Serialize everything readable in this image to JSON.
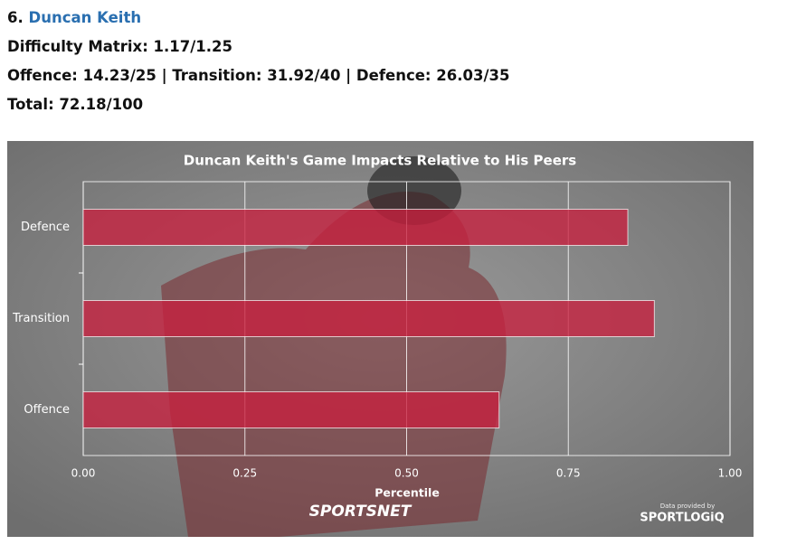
{
  "header": {
    "rank": "6.",
    "name": "Duncan Keith",
    "lines": [
      "Difficulty Matrix: 1.17/1.25",
      "Offence: 14.23/25 | Transition: 31.92/40 | Defence: 26.03/35",
      "Total: 72.18/100"
    ]
  },
  "chart_data": {
    "type": "hbar",
    "title": "Duncan Keith's Game Impacts Relative to His Peers",
    "categories": [
      "Defence",
      "Transition",
      "Offence"
    ],
    "values": [
      0.842,
      0.883,
      0.643
    ],
    "color": "#c8203f",
    "xlim": [
      0,
      1
    ],
    "xticks": [
      {
        "value": 0,
        "label": "0.00"
      },
      {
        "value": 0.25,
        "label": "0.25"
      },
      {
        "value": 0.5,
        "label": "0.50"
      },
      {
        "value": 0.75,
        "label": "0.75"
      },
      {
        "value": 1,
        "label": "1.00"
      }
    ],
    "x_label": "Percentile",
    "grid": true,
    "credits": {
      "network": "SPORTSNET",
      "data_note": "Data provided by",
      "provider": "SPORTLOGiQ"
    }
  }
}
